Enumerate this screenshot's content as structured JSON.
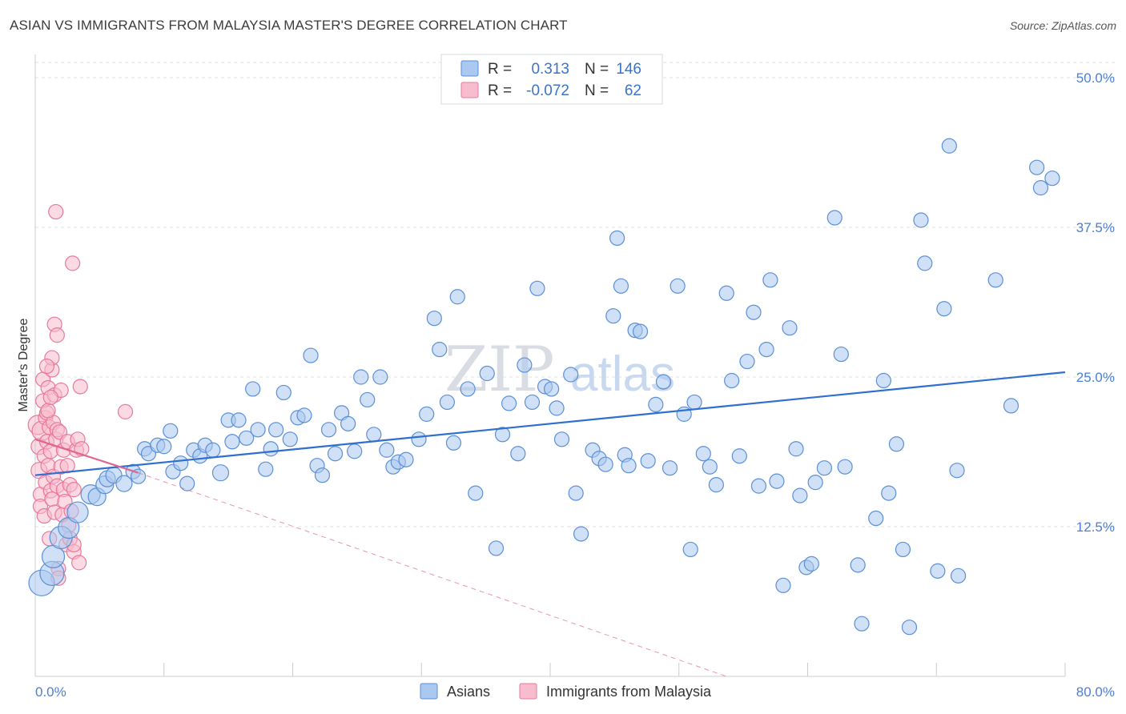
{
  "header": {
    "title": "ASIAN VS IMMIGRANTS FROM MALAYSIA MASTER'S DEGREE CORRELATION CHART",
    "source": "Source: ZipAtlas.com"
  },
  "watermark": {
    "zip": "ZIP",
    "atlas": "atlas"
  },
  "legend": {
    "rows": [
      {
        "r_label": "R =",
        "r_value": "0.313",
        "n_label": "N =",
        "n_value": "146"
      },
      {
        "r_label": "R =",
        "r_value": "-0.072",
        "n_label": "N =",
        "n_value": "62"
      }
    ]
  },
  "bottom_legend": {
    "asians": "Asians",
    "malaysia": "Immigrants from Malaysia"
  },
  "colors": {
    "asian_fill": "#aac8f0",
    "asian_stroke": "#5b8fd6",
    "asian_line": "#2f6fd0",
    "malaysia_fill": "#f7bccd",
    "malaysia_stroke": "#e8799a",
    "malaysia_line": "#e0668f",
    "grid": "#dde1e6",
    "axis": "#cccccc"
  },
  "chart_data": {
    "type": "scatter",
    "title": "ASIAN VS IMMIGRANTS FROM MALAYSIA MASTER'S DEGREE CORRELATION CHART",
    "xlabel": "",
    "ylabel": "Master's Degree",
    "xlim": [
      0,
      80
    ],
    "ylim": [
      0,
      52
    ],
    "x_tick_labels": [
      "0.0%",
      "80.0%"
    ],
    "y_ticks": [
      12.5,
      25.0,
      37.5,
      50.0
    ],
    "y_tick_labels": [
      "12.5%",
      "25.0%",
      "37.5%",
      "50.0%"
    ],
    "series": [
      {
        "name": "Asians",
        "trend": {
          "x": [
            0,
            80
          ],
          "y": [
            16.8,
            25.4
          ]
        },
        "points": [
          [
            0.5,
            7.8
          ],
          [
            1.3,
            8.6
          ],
          [
            1.4,
            10.0
          ],
          [
            2.0,
            11.6
          ],
          [
            2.6,
            12.4
          ],
          [
            3.3,
            13.7
          ],
          [
            4.3,
            15.2
          ],
          [
            4.8,
            15.0
          ],
          [
            5.4,
            16.0
          ],
          [
            5.6,
            16.5
          ],
          [
            6.1,
            16.8
          ],
          [
            6.9,
            16.1
          ],
          [
            7.6,
            17.1
          ],
          [
            8.0,
            16.7
          ],
          [
            8.5,
            19.0
          ],
          [
            8.8,
            18.6
          ],
          [
            9.5,
            19.3
          ],
          [
            10.0,
            19.2
          ],
          [
            10.5,
            20.5
          ],
          [
            10.7,
            17.1
          ],
          [
            11.3,
            17.8
          ],
          [
            11.8,
            16.1
          ],
          [
            12.3,
            18.9
          ],
          [
            12.8,
            18.4
          ],
          [
            13.2,
            19.3
          ],
          [
            13.8,
            18.9
          ],
          [
            14.4,
            17.0
          ],
          [
            15.0,
            21.4
          ],
          [
            15.3,
            19.6
          ],
          [
            15.8,
            21.4
          ],
          [
            16.4,
            19.9
          ],
          [
            16.9,
            24.0
          ],
          [
            17.3,
            20.6
          ],
          [
            17.9,
            17.3
          ],
          [
            18.3,
            19.0
          ],
          [
            18.7,
            20.6
          ],
          [
            19.3,
            23.7
          ],
          [
            19.8,
            19.8
          ],
          [
            20.4,
            21.6
          ],
          [
            20.9,
            21.8
          ],
          [
            21.4,
            26.8
          ],
          [
            21.9,
            17.6
          ],
          [
            22.3,
            16.8
          ],
          [
            22.8,
            20.6
          ],
          [
            23.3,
            18.6
          ],
          [
            23.8,
            22.0
          ],
          [
            24.3,
            21.1
          ],
          [
            24.8,
            18.8
          ],
          [
            25.3,
            25.0
          ],
          [
            25.8,
            23.1
          ],
          [
            26.3,
            20.2
          ],
          [
            26.8,
            25.0
          ],
          [
            27.3,
            18.9
          ],
          [
            27.8,
            17.5
          ],
          [
            28.2,
            17.9
          ],
          [
            28.8,
            18.1
          ],
          [
            29.8,
            19.8
          ],
          [
            30.4,
            21.9
          ],
          [
            31.0,
            29.9
          ],
          [
            31.4,
            27.3
          ],
          [
            32.0,
            22.9
          ],
          [
            32.5,
            19.5
          ],
          [
            32.8,
            31.7
          ],
          [
            33.6,
            24.0
          ],
          [
            34.2,
            15.3
          ],
          [
            35.1,
            25.3
          ],
          [
            35.8,
            10.7
          ],
          [
            36.3,
            20.2
          ],
          [
            36.8,
            22.8
          ],
          [
            37.5,
            18.6
          ],
          [
            38.0,
            26.0
          ],
          [
            38.6,
            22.9
          ],
          [
            39.0,
            32.4
          ],
          [
            39.6,
            24.2
          ],
          [
            40.1,
            24.0
          ],
          [
            40.5,
            22.4
          ],
          [
            40.9,
            19.8
          ],
          [
            41.6,
            25.2
          ],
          [
            42.0,
            15.3
          ],
          [
            42.4,
            11.9
          ],
          [
            43.3,
            18.9
          ],
          [
            43.8,
            18.2
          ],
          [
            44.3,
            17.7
          ],
          [
            44.9,
            30.1
          ],
          [
            45.2,
            36.6
          ],
          [
            45.5,
            32.6
          ],
          [
            45.8,
            18.5
          ],
          [
            46.1,
            17.6
          ],
          [
            46.6,
            28.9
          ],
          [
            47.0,
            28.8
          ],
          [
            47.6,
            18.0
          ],
          [
            48.2,
            22.7
          ],
          [
            48.8,
            24.6
          ],
          [
            49.3,
            17.4
          ],
          [
            49.9,
            32.6
          ],
          [
            50.4,
            21.9
          ],
          [
            50.9,
            10.6
          ],
          [
            51.2,
            22.9
          ],
          [
            51.9,
            18.6
          ],
          [
            52.4,
            17.5
          ],
          [
            52.9,
            16.0
          ],
          [
            53.7,
            32.0
          ],
          [
            54.1,
            24.7
          ],
          [
            54.7,
            18.4
          ],
          [
            55.3,
            26.3
          ],
          [
            55.8,
            30.4
          ],
          [
            56.2,
            15.9
          ],
          [
            56.8,
            27.3
          ],
          [
            57.1,
            33.1
          ],
          [
            57.6,
            16.3
          ],
          [
            58.1,
            7.6
          ],
          [
            58.6,
            29.1
          ],
          [
            59.1,
            19.0
          ],
          [
            59.4,
            15.1
          ],
          [
            59.9,
            9.1
          ],
          [
            60.3,
            9.4
          ],
          [
            60.6,
            16.2
          ],
          [
            61.3,
            17.4
          ],
          [
            62.1,
            38.3
          ],
          [
            62.6,
            26.9
          ],
          [
            62.9,
            17.5
          ],
          [
            63.9,
            9.3
          ],
          [
            64.2,
            4.4
          ],
          [
            65.3,
            13.2
          ],
          [
            65.9,
            24.7
          ],
          [
            66.3,
            15.3
          ],
          [
            66.9,
            19.4
          ],
          [
            67.4,
            10.6
          ],
          [
            67.9,
            4.1
          ],
          [
            68.8,
            38.1
          ],
          [
            69.1,
            34.5
          ],
          [
            70.1,
            8.8
          ],
          [
            70.6,
            30.7
          ],
          [
            71.0,
            44.3
          ],
          [
            71.6,
            17.2
          ],
          [
            71.7,
            8.4
          ],
          [
            74.6,
            33.1
          ],
          [
            75.8,
            22.6
          ],
          [
            77.8,
            42.5
          ],
          [
            78.1,
            40.8
          ],
          [
            79.0,
            41.6
          ]
        ],
        "sizes": [
          16,
          15,
          14,
          14,
          13,
          13,
          12,
          11,
          11,
          10,
          10,
          10,
          9,
          9,
          9,
          9,
          9,
          9,
          9,
          9,
          9,
          9,
          9,
          9,
          9,
          9,
          10,
          9,
          9,
          9,
          9,
          9,
          9,
          9,
          9,
          9,
          9,
          9,
          9,
          9,
          9,
          9,
          9,
          9,
          9,
          9,
          9,
          9,
          9,
          9,
          9,
          9,
          9,
          9,
          9,
          9,
          9,
          9,
          9,
          9,
          9,
          9,
          9,
          9,
          9,
          9,
          9,
          9,
          9,
          9,
          9,
          9,
          9,
          9,
          9,
          9,
          9,
          9,
          9,
          9,
          9,
          9,
          9,
          9,
          9,
          9,
          9,
          9,
          9,
          9,
          9,
          9,
          9,
          9,
          9,
          9,
          9,
          9,
          9,
          9,
          9,
          9,
          9,
          9,
          9,
          9,
          9,
          9,
          9,
          9,
          9,
          9,
          9,
          9,
          9,
          9,
          9,
          9,
          9,
          9,
          9,
          9,
          9,
          9,
          9,
          9,
          9,
          9,
          9,
          9,
          9,
          9,
          9,
          9,
          9,
          9,
          9,
          9,
          9,
          9,
          9,
          9,
          9,
          9,
          9,
          9,
          9
        ]
      },
      {
        "name": "Immigrants from Malaysia",
        "trend": {
          "x": [
            0,
            8.0
          ],
          "y": [
            19.8,
            17.0
          ]
        },
        "trend_dashed": {
          "x": [
            8.0,
            53.7
          ],
          "y": [
            17.0,
            0.0
          ]
        },
        "points": [
          [
            0.2,
            21.0
          ],
          [
            0.3,
            19.2
          ],
          [
            0.3,
            17.2
          ],
          [
            0.4,
            15.2
          ],
          [
            0.4,
            14.2
          ],
          [
            0.5,
            20.5
          ],
          [
            0.6,
            23.0
          ],
          [
            0.6,
            24.8
          ],
          [
            0.7,
            13.4
          ],
          [
            0.7,
            18.4
          ],
          [
            0.8,
            21.6
          ],
          [
            0.8,
            16.2
          ],
          [
            0.9,
            19.6
          ],
          [
            0.9,
            22.0
          ],
          [
            1.0,
            24.1
          ],
          [
            1.0,
            17.6
          ],
          [
            1.1,
            20.8
          ],
          [
            1.1,
            11.5
          ],
          [
            1.2,
            15.5
          ],
          [
            1.2,
            18.8
          ],
          [
            1.3,
            25.6
          ],
          [
            1.3,
            14.8
          ],
          [
            1.3,
            26.6
          ],
          [
            1.4,
            21.2
          ],
          [
            1.4,
            16.7
          ],
          [
            1.5,
            23.5
          ],
          [
            1.5,
            29.4
          ],
          [
            1.5,
            13.7
          ],
          [
            1.6,
            19.8
          ],
          [
            1.6,
            38.8
          ],
          [
            1.7,
            20.6
          ],
          [
            1.7,
            28.5
          ],
          [
            1.7,
            15.9
          ],
          [
            1.8,
            9.0
          ],
          [
            1.8,
            8.2
          ],
          [
            1.9,
            20.4
          ],
          [
            2.0,
            23.9
          ],
          [
            2.0,
            17.5
          ],
          [
            2.1,
            13.5
          ],
          [
            2.2,
            15.6
          ],
          [
            2.2,
            18.9
          ],
          [
            2.3,
            14.6
          ],
          [
            2.4,
            11.0
          ],
          [
            2.5,
            17.6
          ],
          [
            2.5,
            19.6
          ],
          [
            2.6,
            12.6
          ],
          [
            2.7,
            11.5
          ],
          [
            2.7,
            16.0
          ],
          [
            2.8,
            13.8
          ],
          [
            3.0,
            10.4
          ],
          [
            3.0,
            11.0
          ],
          [
            3.2,
            18.9
          ],
          [
            3.3,
            19.8
          ],
          [
            3.4,
            9.5
          ],
          [
            3.5,
            24.2
          ],
          [
            3.6,
            19.0
          ],
          [
            2.9,
            34.5
          ],
          [
            0.9,
            25.9
          ],
          [
            1.0,
            22.2
          ],
          [
            1.2,
            23.3
          ],
          [
            7.0,
            22.1
          ],
          [
            3.0,
            15.6
          ]
        ],
        "sizes": [
          12,
          10,
          10,
          9,
          9,
          12,
          9,
          9,
          9,
          9,
          9,
          9,
          9,
          9,
          9,
          9,
          9,
          9,
          9,
          9,
          9,
          9,
          9,
          9,
          9,
          9,
          9,
          9,
          9,
          9,
          9,
          9,
          9,
          9,
          9,
          9,
          9,
          9,
          9,
          9,
          9,
          9,
          9,
          9,
          9,
          9,
          9,
          9,
          9,
          9,
          9,
          9,
          9,
          9,
          9,
          9,
          9,
          9,
          9,
          9,
          9,
          9
        ]
      }
    ]
  }
}
